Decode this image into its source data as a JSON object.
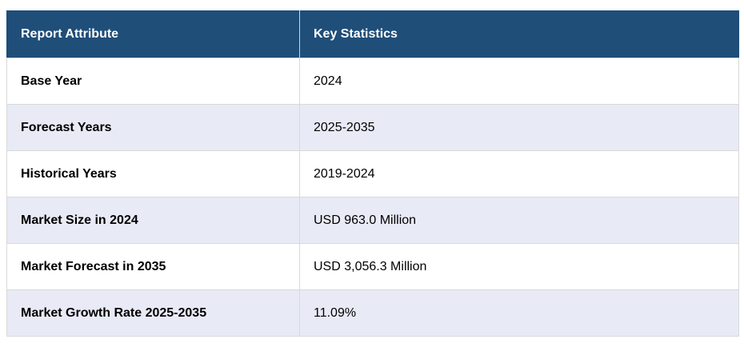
{
  "header": {
    "col1": "Report Attribute",
    "col2": "Key Statistics"
  },
  "rows": [
    {
      "attribute": "Base Year",
      "value": "2024"
    },
    {
      "attribute": "Forecast Years",
      "value": "2025-2035"
    },
    {
      "attribute": "Historical Years",
      "value": "2019-2024"
    },
    {
      "attribute": "Market Size in 2024",
      "value": "USD 963.0 Million"
    },
    {
      "attribute": "Market Forecast in 2035",
      "value": "USD 3,056.3 Million"
    },
    {
      "attribute": "Market Growth Rate 2025-2035",
      "value": "11.09%"
    }
  ],
  "colors": {
    "header_bg": "#1f4e79",
    "header_text": "#ffffff",
    "stripe_bg": "#e8eaf6",
    "border": "#d9d9d9"
  }
}
